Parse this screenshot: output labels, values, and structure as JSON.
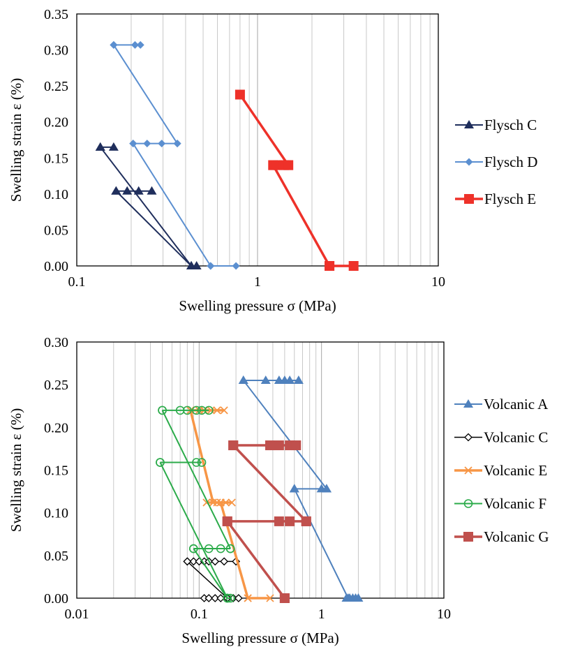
{
  "chart_data": [
    {
      "type": "scatter",
      "title": "",
      "xlabel": "Swelling pressure σ (MPa)",
      "ylabel": "Swelling strain ε (%)",
      "x_scale": "log",
      "xlim": [
        0.1,
        10
      ],
      "ylim": [
        0,
        0.35
      ],
      "x_ticks": [
        "0.1",
        "1",
        "10"
      ],
      "y_ticks": [
        "0.00",
        "0.05",
        "0.10",
        "0.15",
        "0.20",
        "0.25",
        "0.30",
        "0.35"
      ],
      "grid": "vertical",
      "legend_position": "right",
      "series": [
        {
          "name": "Flysch C",
          "color": "#1f2e5c",
          "marker": "triangle",
          "line_width": 2,
          "segments": [
            [
              [
                0.135,
                0.165
              ],
              [
                0.16,
                0.165
              ]
            ],
            [
              [
                0.135,
                0.165
              ],
              [
                0.43,
                0.0
              ]
            ],
            [
              [
                0.165,
                0.104
              ],
              [
                0.19,
                0.104
              ],
              [
                0.22,
                0.104
              ],
              [
                0.26,
                0.104
              ]
            ],
            [
              [
                0.165,
                0.104
              ],
              [
                0.43,
                0.0
              ]
            ],
            [
              [
                0.43,
                0.0
              ],
              [
                0.46,
                0.0
              ]
            ]
          ]
        },
        {
          "name": "Flysch D",
          "color": "#5b8fd0",
          "marker": "diamond",
          "line_width": 2,
          "segments": [
            [
              [
                0.16,
                0.307
              ],
              [
                0.21,
                0.307
              ],
              [
                0.225,
                0.307
              ]
            ],
            [
              [
                0.16,
                0.307
              ],
              [
                0.36,
                0.17
              ]
            ],
            [
              [
                0.205,
                0.17
              ],
              [
                0.245,
                0.17
              ],
              [
                0.295,
                0.17
              ],
              [
                0.36,
                0.17
              ]
            ],
            [
              [
                0.205,
                0.17
              ],
              [
                0.55,
                0.0
              ]
            ],
            [
              [
                0.55,
                0.0
              ],
              [
                0.76,
                0.0
              ]
            ]
          ]
        },
        {
          "name": "Flysch E",
          "color": "#ee3129",
          "marker": "square",
          "line_width": 3.5,
          "segments": [
            [
              [
                0.8,
                0.238
              ],
              [
                1.48,
                0.14
              ]
            ],
            [
              [
                1.22,
                0.14
              ],
              [
                1.3,
                0.14
              ],
              [
                1.4,
                0.14
              ],
              [
                1.48,
                0.14
              ]
            ],
            [
              [
                1.22,
                0.14
              ],
              [
                2.5,
                0.0
              ]
            ],
            [
              [
                2.5,
                0.0
              ],
              [
                3.4,
                0.0
              ]
            ]
          ]
        }
      ]
    },
    {
      "type": "scatter",
      "title": "",
      "xlabel": "Swelling pressure σ (MPa)",
      "ylabel": "Swelling strain ε (%)",
      "x_scale": "log",
      "xlim": [
        0.01,
        10
      ],
      "ylim": [
        0,
        0.3
      ],
      "x_ticks": [
        "0.01",
        "0.1",
        "1",
        "10"
      ],
      "y_ticks": [
        "0.00",
        "0.05",
        "0.10",
        "0.15",
        "0.20",
        "0.25",
        "0.30"
      ],
      "grid": "vertical",
      "legend_position": "right",
      "series": [
        {
          "name": "Volcanic A",
          "color": "#4f81bd",
          "marker": "triangle",
          "line_width": 2,
          "segments": [
            [
              [
                0.23,
                0.255
              ],
              [
                0.35,
                0.255
              ],
              [
                0.45,
                0.255
              ],
              [
                0.5,
                0.255
              ],
              [
                0.55,
                0.255
              ],
              [
                0.65,
                0.255
              ]
            ],
            [
              [
                0.23,
                0.255
              ],
              [
                1.1,
                0.128
              ]
            ],
            [
              [
                0.6,
                0.128
              ],
              [
                1.0,
                0.128
              ],
              [
                1.1,
                0.128
              ]
            ],
            [
              [
                0.6,
                0.128
              ],
              [
                1.65,
                0.0
              ]
            ],
            [
              [
                1.6,
                0.0
              ],
              [
                1.7,
                0.0
              ],
              [
                1.8,
                0.0
              ],
              [
                1.9,
                0.0
              ],
              [
                2.0,
                0.0
              ]
            ]
          ]
        },
        {
          "name": "Volcanic C",
          "color": "#000000",
          "marker": "diamond-open",
          "line_width": 1.5,
          "segments": [
            [
              [
                0.08,
                0.043
              ],
              [
                0.09,
                0.043
              ],
              [
                0.1,
                0.043
              ],
              [
                0.11,
                0.043
              ],
              [
                0.12,
                0.043
              ],
              [
                0.135,
                0.043
              ],
              [
                0.16,
                0.043
              ],
              [
                0.2,
                0.043
              ]
            ],
            [
              [
                0.08,
                0.043
              ],
              [
                0.17,
                0.0
              ]
            ],
            [
              [
                0.11,
                0.0
              ],
              [
                0.12,
                0.0
              ],
              [
                0.135,
                0.0
              ],
              [
                0.15,
                0.0
              ],
              [
                0.17,
                0.0
              ],
              [
                0.19,
                0.0
              ],
              [
                0.21,
                0.0
              ]
            ]
          ]
        },
        {
          "name": "Volcanic E",
          "color": "#f79646",
          "marker": "x",
          "line_width": 3.5,
          "segments": [
            [
              [
                0.085,
                0.22
              ],
              [
                0.1,
                0.22
              ],
              [
                0.11,
                0.22
              ],
              [
                0.125,
                0.22
              ],
              [
                0.14,
                0.22
              ],
              [
                0.16,
                0.22
              ]
            ],
            [
              [
                0.085,
                0.22
              ],
              [
                0.13,
                0.112
              ]
            ],
            [
              [
                0.115,
                0.112
              ],
              [
                0.13,
                0.112
              ],
              [
                0.14,
                0.112
              ],
              [
                0.15,
                0.112
              ],
              [
                0.165,
                0.112
              ],
              [
                0.185,
                0.112
              ]
            ],
            [
              [
                0.15,
                0.112
              ],
              [
                0.25,
                0.0
              ]
            ],
            [
              [
                0.25,
                0.0
              ],
              [
                0.38,
                0.0
              ]
            ]
          ]
        },
        {
          "name": "Volcanic F",
          "color": "#2bab4a",
          "marker": "circle-open",
          "line_width": 2,
          "segments": [
            [
              [
                0.05,
                0.22
              ],
              [
                0.07,
                0.22
              ],
              [
                0.08,
                0.22
              ],
              [
                0.095,
                0.22
              ],
              [
                0.105,
                0.22
              ],
              [
                0.12,
                0.22
              ]
            ],
            [
              [
                0.05,
                0.22
              ],
              [
                0.18,
                0.058
              ]
            ],
            [
              [
                0.048,
                0.159
              ],
              [
                0.095,
                0.159
              ],
              [
                0.105,
                0.159
              ]
            ],
            [
              [
                0.048,
                0.159
              ],
              [
                0.17,
                0.0
              ]
            ],
            [
              [
                0.09,
                0.058
              ],
              [
                0.12,
                0.058
              ],
              [
                0.15,
                0.058
              ],
              [
                0.18,
                0.058
              ]
            ],
            [
              [
                0.09,
                0.058
              ],
              [
                0.17,
                0.0
              ]
            ],
            [
              [
                0.17,
                0.0
              ],
              [
                0.18,
                0.0
              ]
            ]
          ]
        },
        {
          "name": "Volcanic G",
          "color": "#c0504d",
          "marker": "square",
          "line_width": 3.5,
          "segments": [
            [
              [
                0.19,
                0.179
              ],
              [
                0.38,
                0.179
              ],
              [
                0.45,
                0.179
              ],
              [
                0.55,
                0.179
              ],
              [
                0.62,
                0.179
              ]
            ],
            [
              [
                0.19,
                0.179
              ],
              [
                0.75,
                0.09
              ]
            ],
            [
              [
                0.17,
                0.09
              ],
              [
                0.45,
                0.09
              ],
              [
                0.55,
                0.09
              ],
              [
                0.75,
                0.09
              ]
            ],
            [
              [
                0.17,
                0.09
              ],
              [
                0.5,
                0.0
              ]
            ],
            [
              [
                0.5,
                0.0
              ]
            ]
          ]
        }
      ]
    }
  ]
}
